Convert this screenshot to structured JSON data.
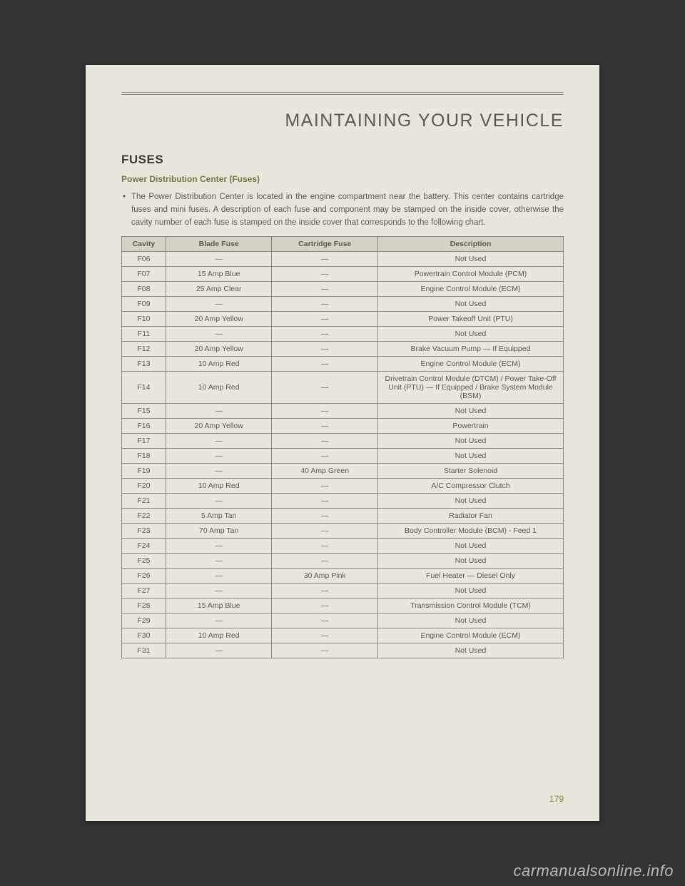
{
  "page": {
    "chapter_title": "MAINTAINING YOUR VEHICLE",
    "section_title": "FUSES",
    "subsection": "Power Distribution Center (Fuses)",
    "paragraph": "The Power Distribution Center is located in the engine compartment near the battery. This center contains cartridge fuses and mini fuses. A description of each fuse and component may be stamped on the inside cover, otherwise the cavity number of each fuse is stamped on the inside cover that corresponds to the following chart.",
    "page_number": "179",
    "watermark": "carmanualsonline.info",
    "background_color": "#333333",
    "paper_color": "#e8e6dd",
    "accent_color": "#6f7a3f"
  },
  "table": {
    "type": "table",
    "header_bg": "#d4d1c5",
    "border_color": "#888888",
    "font_size": 10.5,
    "columns": [
      {
        "label": "Cavity",
        "width_pct": 10,
        "align": "center"
      },
      {
        "label": "Blade Fuse",
        "width_pct": 24,
        "align": "center"
      },
      {
        "label": "Cartridge Fuse",
        "width_pct": 24,
        "align": "center"
      },
      {
        "label": "Description",
        "width_pct": 42,
        "align": "center"
      }
    ],
    "rows": [
      [
        "F06",
        "—",
        "—",
        "Not Used"
      ],
      [
        "F07",
        "15 Amp Blue",
        "—",
        "Powertrain Control Module (PCM)"
      ],
      [
        "F08",
        "25 Amp Clear",
        "—",
        "Engine Control Module (ECM)"
      ],
      [
        "F09",
        "—",
        "—",
        "Not Used"
      ],
      [
        "F10",
        "20 Amp Yellow",
        "—",
        "Power Takeoff Unit (PTU)"
      ],
      [
        "F11",
        "—",
        "—",
        "Not Used"
      ],
      [
        "F12",
        "20 Amp Yellow",
        "—",
        "Brake Vacuum Pump — If Equipped"
      ],
      [
        "F13",
        "10 Amp Red",
        "—",
        "Engine Control Module (ECM)"
      ],
      [
        "F14",
        "10 Amp Red",
        "—",
        "Drivetrain Control Module (DTCM) / Power Take-Off Unit (PTU) — If Equipped / Brake System Module (BSM)"
      ],
      [
        "F15",
        "—",
        "—",
        "Not Used"
      ],
      [
        "F16",
        "20 Amp Yellow",
        "—",
        "Powertrain"
      ],
      [
        "F17",
        "—",
        "—",
        "Not Used"
      ],
      [
        "F18",
        "—",
        "—",
        "Not Used"
      ],
      [
        "F19",
        "—",
        "40 Amp Green",
        "Starter Solenoid"
      ],
      [
        "F20",
        "10 Amp Red",
        "—",
        "A/C Compressor Clutch"
      ],
      [
        "F21",
        "—",
        "—",
        "Not Used"
      ],
      [
        "F22",
        "5 Amp Tan",
        "—",
        "Radiator Fan"
      ],
      [
        "F23",
        "70 Amp Tan",
        "—",
        "Body Controller Module (BCM) - Feed 1"
      ],
      [
        "F24",
        "—",
        "—",
        "Not Used"
      ],
      [
        "F25",
        "—",
        "—",
        "Not Used"
      ],
      [
        "F26",
        "—",
        "30 Amp Pink",
        "Fuel Heater — Diesel Only"
      ],
      [
        "F27",
        "—",
        "—",
        "Not Used"
      ],
      [
        "F28",
        "15 Amp Blue",
        "—",
        "Transmission Control Module (TCM)"
      ],
      [
        "F29",
        "—",
        "—",
        "Not Used"
      ],
      [
        "F30",
        "10 Amp Red",
        "—",
        "Engine Control Module (ECM)"
      ],
      [
        "F31",
        "—",
        "—",
        "Not Used"
      ]
    ]
  }
}
